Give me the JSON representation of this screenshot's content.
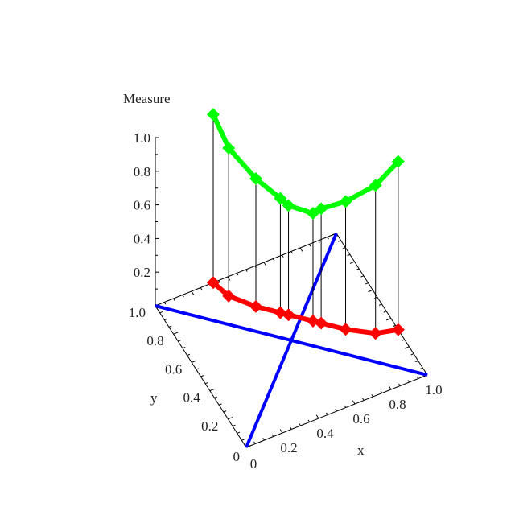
{
  "chart_data": {
    "type": "scatter3d",
    "title": "",
    "xlabel": "x",
    "ylabel": "y",
    "zlabel": "Measure",
    "xlim": [
      0,
      1
    ],
    "ylim": [
      0,
      1
    ],
    "zlim": [
      0,
      1
    ],
    "x_ticks": [
      "0",
      "0.2",
      "0.4",
      "0.6",
      "0.8",
      "1.0"
    ],
    "y_ticks": [
      "0",
      "0.2",
      "0.4",
      "0.6",
      "0.8",
      "1.0"
    ],
    "z_ticks": [
      "0.2",
      "0.4",
      "0.6",
      "0.8",
      "1.0"
    ],
    "lines": [
      {
        "color": "#0000ff",
        "points": [
          [
            0,
            0,
            0
          ],
          [
            1,
            1,
            0
          ]
        ]
      },
      {
        "color": "#0000ff",
        "points": [
          [
            1,
            0,
            0
          ],
          [
            0,
            1,
            0
          ]
        ]
      }
    ],
    "points_xy": [
      [
        0.32,
        1.0
      ],
      [
        0.35,
        0.89
      ],
      [
        0.44,
        0.77
      ],
      [
        0.53,
        0.68
      ],
      [
        0.56,
        0.65
      ],
      [
        0.65,
        0.56
      ],
      [
        0.68,
        0.53
      ],
      [
        0.77,
        0.44
      ],
      [
        0.89,
        0.35
      ],
      [
        1.0,
        0.32
      ]
    ],
    "series": [
      {
        "color": "#ff0000",
        "marker": "diamond",
        "z": [
          0,
          0,
          0,
          0,
          0,
          0,
          0,
          0,
          0,
          0
        ]
      },
      {
        "color": "#00ff00",
        "marker": "diamond",
        "z": [
          1.0,
          0.88,
          0.76,
          0.68,
          0.65,
          0.64,
          0.68,
          0.76,
          0.88,
          1.0
        ]
      }
    ],
    "drop_lines": true,
    "grid": false
  }
}
